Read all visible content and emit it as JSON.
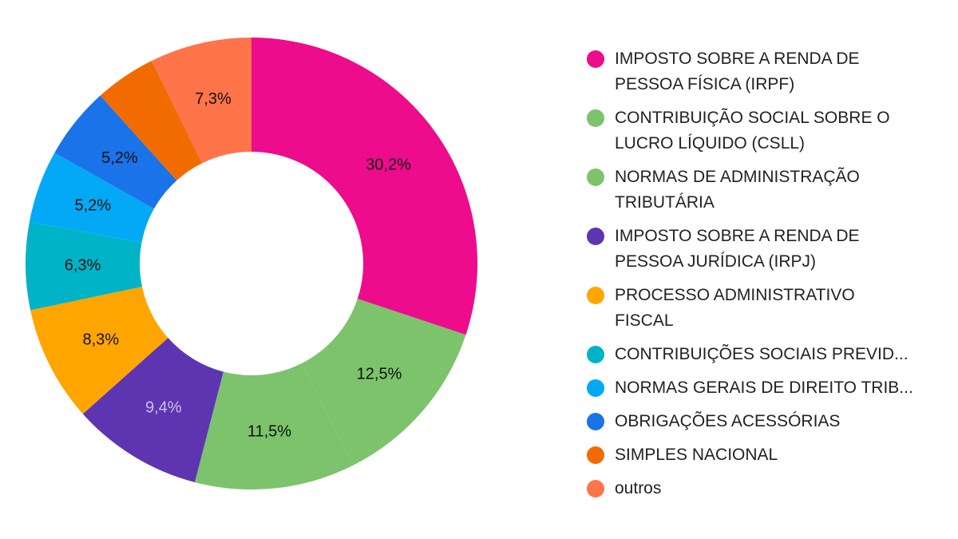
{
  "chart_data": {
    "type": "pie",
    "donut": true,
    "legend_position": "right",
    "slices": [
      {
        "label": "IMPOSTO SOBRE A RENDA DE\nPESSOA FÍSICA (IRPF)",
        "value": 30.2,
        "display": "30,2%",
        "color": "#EC0C8C",
        "label_color": "#111111"
      },
      {
        "label": "CONTRIBUIÇÃO SOCIAL SOBRE O\nLUCRO LÍQUIDO (CSLL)",
        "value": 12.5,
        "display": "12,5%",
        "color": "#7CC36B",
        "label_color": "#111111"
      },
      {
        "label": "NORMAS DE ADMINISTRAÇÃO\nTRIBUTÁRIA",
        "value": 11.5,
        "display": "11,5%",
        "color": "#7CC36B",
        "label_color": "#111111"
      },
      {
        "label": "IMPOSTO SOBRE A RENDA DE\nPESSOA JURÍDICA (IRPJ)",
        "value": 9.4,
        "display": "9,4%",
        "color": "#5E35B1",
        "label_color": "#C9C2E6"
      },
      {
        "label": "PROCESSO ADMINISTRATIVO\nFISCAL",
        "value": 8.3,
        "display": "8,3%",
        "color": "#FFA500",
        "label_color": "#111111"
      },
      {
        "label": "CONTRIBUIÇÕES SOCIAIS PREVID...",
        "value": 6.3,
        "display": "6,3%",
        "color": "#00B3C7",
        "label_color": "#111111"
      },
      {
        "label": "NORMAS GERAIS DE DIREITO TRIB...",
        "value": 5.2,
        "display": "5,2%",
        "color": "#03A9F4",
        "label_color": "#111111"
      },
      {
        "label": "OBRIGAÇÕES ACESSÓRIAS",
        "value": 5.2,
        "display": "5,2%",
        "color": "#1A73E8",
        "label_color": "#111111"
      },
      {
        "label": "SIMPLES NACIONAL",
        "value": 4.4,
        "display": "",
        "color": "#F26B00",
        "label_color": "#111111"
      },
      {
        "label": "outros",
        "value": 7.3,
        "display": "7,3%",
        "color": "#FF7449",
        "label_color": "#111111"
      }
    ]
  }
}
